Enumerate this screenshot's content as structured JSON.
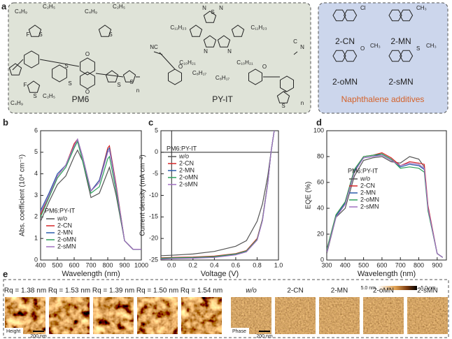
{
  "panel_labels": [
    "a",
    "b",
    "c",
    "d",
    "e"
  ],
  "panel_a": {
    "molecules": [
      "PM6",
      "PY-IT"
    ],
    "pm6_atoms": [
      "C₄H₉",
      "C₂H₅",
      "C₄H₉",
      "C₂H₅",
      "F",
      "S",
      "S",
      "S",
      "O",
      "O",
      "S",
      "S",
      "S",
      "F",
      "S",
      "C₄H₉",
      "C₂H₅",
      "n"
    ],
    "pyit_atoms": [
      "N",
      "S",
      "N",
      "C₁₁H₂₃",
      "C₁₁H₂₃",
      "NC",
      "N",
      "N",
      "O",
      "O",
      "C₁₀H₂₁",
      "C₁₀H₂₁",
      "C₈H₁₇",
      "C₈H₁₇",
      "C",
      "N",
      "S",
      "n"
    ],
    "additives": {
      "names": [
        "2-CN",
        "2-MN",
        "2-oMN",
        "2-sMN"
      ],
      "substituents": [
        [
          "Cl"
        ],
        [
          "CH₃"
        ],
        [
          "O",
          "CH₃"
        ],
        [
          "S",
          "CH₃"
        ]
      ],
      "caption": "Naphthalene additives"
    }
  },
  "chart_data": [
    {
      "type": "line",
      "xlabel": "Wavelength (nm)",
      "ylabel": "Abs. coefficient (10⁴ cm⁻¹)",
      "x": [
        400,
        450,
        500,
        550,
        600,
        620,
        650,
        700,
        750,
        800,
        810,
        850,
        900,
        950,
        1000
      ],
      "xlim": [
        400,
        1000
      ],
      "xticks": [
        400,
        500,
        600,
        700,
        800,
        900,
        1000
      ],
      "ylim": [
        0,
        6
      ],
      "yticks": [
        0,
        1,
        2,
        3,
        4,
        5,
        6
      ],
      "legend_title": "PM6:PY-IT",
      "legend": "lower left",
      "zero_lines": false,
      "series": [
        {
          "name": "w/o",
          "color": "#555555",
          "values": [
            1.8,
            2.7,
            3.5,
            3.9,
            4.8,
            5.1,
            4.6,
            2.9,
            3.1,
            4.1,
            4.3,
            3.0,
            0.9,
            0.5,
            0.5
          ]
        },
        {
          "name": "2-CN",
          "color": "#d62728",
          "values": [
            2.1,
            3.0,
            3.9,
            4.4,
            5.4,
            5.6,
            4.8,
            3.2,
            3.7,
            5.2,
            5.3,
            3.5,
            0.9,
            0.5,
            0.5
          ]
        },
        {
          "name": "2-MN",
          "color": "#2a5caa",
          "values": [
            2.3,
            3.1,
            4.0,
            4.4,
            5.3,
            5.6,
            4.8,
            3.2,
            3.7,
            5.1,
            5.2,
            3.4,
            0.9,
            0.5,
            0.5
          ]
        },
        {
          "name": "2-oMN",
          "color": "#2ca05a",
          "values": [
            2.0,
            2.9,
            3.8,
            4.3,
            5.2,
            5.5,
            4.6,
            3.1,
            3.4,
            4.7,
            4.8,
            3.2,
            0.9,
            0.5,
            0.5
          ]
        },
        {
          "name": "2-sMN",
          "color": "#a070c0",
          "values": [
            2.2,
            3.0,
            3.9,
            4.4,
            5.3,
            5.6,
            4.8,
            3.2,
            3.6,
            5.0,
            5.1,
            3.4,
            0.9,
            0.5,
            0.5
          ]
        }
      ]
    },
    {
      "type": "line",
      "xlabel": "Voltage (V)",
      "ylabel": "Current density (mA cm⁻²)",
      "x": [
        -0.1,
        0,
        0.2,
        0.4,
        0.6,
        0.7,
        0.8,
        0.85,
        0.9,
        0.93,
        0.96
      ],
      "xlim": [
        -0.1,
        1
      ],
      "xticks": [
        {
          "value": 0,
          "label": "0.0"
        },
        0.2,
        0.4,
        0.6,
        0.8,
        {
          "value": 1,
          "label": "1.0"
        }
      ],
      "ylim": [
        -25,
        5
      ],
      "yticks": [
        -25,
        -20,
        -15,
        -10,
        -5,
        0,
        5
      ],
      "legend_title": "PM6:PY-IT",
      "legend": "upper left",
      "zero_lines": true,
      "series": [
        {
          "name": "w/o",
          "color": "#555555",
          "values": [
            -24.0,
            -23.9,
            -23.6,
            -23.0,
            -21.8,
            -20.5,
            -16.0,
            -12.0,
            -5.5,
            0,
            5
          ]
        },
        {
          "name": "2-CN",
          "color": "#d62728",
          "values": [
            -24.5,
            -24.4,
            -24.3,
            -24.1,
            -23.5,
            -22.8,
            -20.0,
            -15.5,
            -7.0,
            0,
            5
          ]
        },
        {
          "name": "2-MN",
          "color": "#2a5caa",
          "values": [
            -24.7,
            -24.6,
            -24.5,
            -24.3,
            -23.7,
            -23.0,
            -20.3,
            -15.8,
            -7.2,
            0,
            5
          ]
        },
        {
          "name": "2-oMN",
          "color": "#2ca05a",
          "values": [
            -24.6,
            -24.5,
            -24.4,
            -24.2,
            -23.6,
            -22.9,
            -20.2,
            -15.6,
            -7.1,
            0,
            5
          ]
        },
        {
          "name": "2-sMN",
          "color": "#a070c0",
          "values": [
            -24.8,
            -24.7,
            -24.6,
            -24.4,
            -23.8,
            -23.1,
            -20.4,
            -15.9,
            -7.3,
            0,
            5
          ]
        }
      ]
    },
    {
      "type": "line",
      "xlabel": "Wavelength (nm)",
      "ylabel": "EQE (%)",
      "x": [
        300,
        350,
        400,
        450,
        500,
        550,
        600,
        650,
        700,
        750,
        800,
        830,
        850,
        900,
        930
      ],
      "xlim": [
        300,
        950
      ],
      "xticks": [
        300,
        400,
        500,
        600,
        700,
        800,
        900
      ],
      "ylim": [
        0,
        100
      ],
      "yticks": [
        0,
        20,
        40,
        60,
        80,
        100
      ],
      "legend_title": "PM6:PY-IT",
      "legend": "center",
      "zero_lines": false,
      "series": [
        {
          "name": "w/o",
          "color": "#555555",
          "values": [
            5,
            33,
            40,
            65,
            77,
            79,
            80,
            76,
            75,
            80,
            78,
            72,
            40,
            5,
            2
          ]
        },
        {
          "name": "2-CN",
          "color": "#d62728",
          "values": [
            8,
            35,
            45,
            70,
            80,
            81,
            83,
            79,
            73,
            76,
            75,
            74,
            42,
            5,
            2
          ]
        },
        {
          "name": "2-MN",
          "color": "#2a5caa",
          "values": [
            7,
            34,
            44,
            69,
            79,
            80,
            82,
            78,
            72,
            74,
            73,
            70,
            40,
            5,
            2
          ]
        },
        {
          "name": "2-oMN",
          "color": "#2ca05a",
          "values": [
            8,
            35,
            45,
            70,
            80,
            81,
            82,
            78,
            71,
            72,
            71,
            68,
            38,
            5,
            2
          ]
        },
        {
          "name": "2-sMN",
          "color": "#a070c0",
          "values": [
            6,
            33,
            43,
            68,
            79,
            80,
            81,
            77,
            73,
            75,
            74,
            71,
            40,
            5,
            2
          ]
        }
      ]
    }
  ],
  "panel_e": {
    "rq_labels": [
      "Rq = 1.38 nm",
      "Rq = 1.53 nm",
      "Rq = 1.39 nm",
      "Rq = 1.50 nm",
      "Rq = 1.54 nm"
    ],
    "phase_labels": [
      "w/o",
      "2-CN",
      "2-MN",
      "2-oMN",
      "2-sMN"
    ],
    "height_label": "Height",
    "phase_label": "Phase",
    "scale_bar": "200 nm",
    "colorbar": [
      "5.0 nm",
      "-5.0 nm"
    ]
  }
}
